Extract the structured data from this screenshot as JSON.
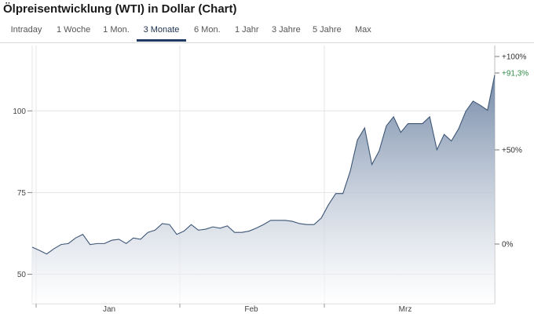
{
  "title": "Ölpreisentwicklung (WTI) in Dollar (Chart)",
  "tabs": [
    {
      "label": "Intraday",
      "active": false
    },
    {
      "label": "1 Woche",
      "active": false
    },
    {
      "label": "1 Mon.",
      "active": false
    },
    {
      "label": "3 Monate",
      "active": true
    },
    {
      "label": "6 Mon.",
      "active": false
    },
    {
      "label": "1 Jahr",
      "active": false
    },
    {
      "label": "3 Jahre",
      "active": false
    },
    {
      "label": "5 Jahre",
      "active": false
    },
    {
      "label": "Max",
      "active": false
    }
  ],
  "colors": {
    "line": "#3d5675",
    "fill_top": "#6d83a3",
    "fill_bottom": "#ffffff",
    "grid": "#e4e4e4",
    "highlight_tick": "#2e8a47",
    "active_tab": "#1f3a63"
  },
  "chart_data": {
    "type": "area",
    "title": "",
    "xlabel": "",
    "ylabel": "",
    "ylim": [
      41,
      120
    ],
    "grid": true,
    "x_month_labels": [
      "Jan",
      "Feb",
      "Mrz"
    ],
    "y_ticks_left": [
      50,
      75,
      100
    ],
    "y_ticks_right": [
      {
        "label": "0%",
        "highlight": false
      },
      {
        "label": "+50%",
        "highlight": false
      },
      {
        "label": "+91,3%",
        "highlight": true
      },
      {
        "label": "+100%",
        "highlight": false
      }
    ],
    "series": [
      {
        "values": [
          58.3,
          57.3,
          56.2,
          57.8,
          59.1,
          59.4,
          61.1,
          62.2,
          59.1,
          59.4,
          59.4,
          60.4,
          60.7,
          59.4,
          61.1,
          60.7,
          62.8,
          63.5,
          65.5,
          65.2,
          62.2,
          63.2,
          65.2,
          63.5,
          63.8,
          64.5,
          64.1,
          64.8,
          62.8,
          62.8,
          63.2,
          64.1,
          65.2,
          66.5,
          66.5,
          66.5,
          66.2,
          65.5,
          65.2,
          65.2,
          67.2,
          71.3,
          74.7,
          74.7,
          81.5,
          91.1,
          94.8,
          83.6,
          87.7,
          95.4,
          98.2,
          93.4,
          96.1,
          96.1,
          96.1,
          98.2,
          88.1,
          92.8,
          90.8,
          94.5,
          99.9,
          103.0,
          101.7,
          100.2,
          111.0
        ]
      }
    ]
  }
}
